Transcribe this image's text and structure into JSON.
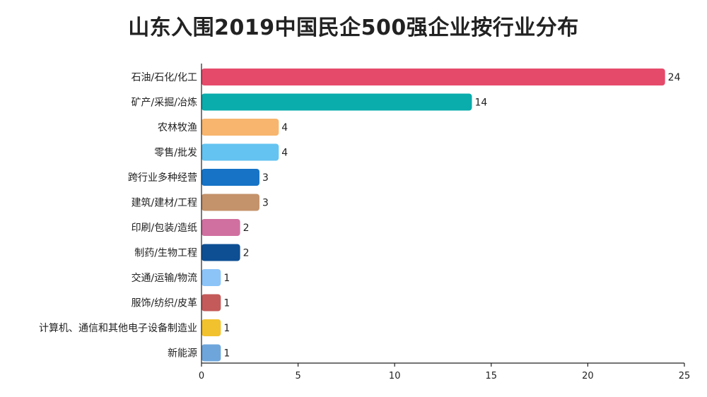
{
  "chart_data": {
    "type": "bar",
    "orientation": "horizontal",
    "title": "山东入围2019中国民企500强企业按行业分布",
    "xlabel": "",
    "ylabel": "",
    "xlim": [
      0,
      25
    ],
    "x_ticks": [
      0,
      5,
      10,
      15,
      20,
      25
    ],
    "grid": false,
    "legend": "none",
    "categories": [
      "石油/石化/化工",
      "矿产/采掘/冶炼",
      "农林牧渔",
      "零售/批发",
      "跨行业多种经营",
      "建筑/建材/工程",
      "印刷/包装/造纸",
      "制药/生物工程",
      "交通/运输/物流",
      "服饰/纺织/皮革",
      "计算机、通信和其他电子设备制造业",
      "新能源"
    ],
    "values": [
      24,
      14,
      4,
      4,
      3,
      3,
      2,
      2,
      1,
      1,
      1,
      1
    ],
    "colors": [
      "#E64A6B",
      "#0AACAC",
      "#F8B56E",
      "#64C3F0",
      "#1673C6",
      "#C4926B",
      "#D070A0",
      "#0E4F94",
      "#8CC4F8",
      "#C45A5A",
      "#F2C12E",
      "#6EA6DC"
    ]
  }
}
